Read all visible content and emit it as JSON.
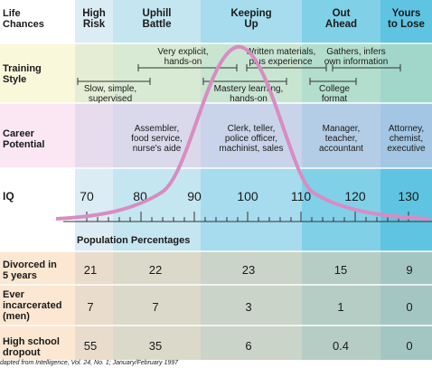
{
  "columns": [
    {
      "line1": "High",
      "line2": "Risk"
    },
    {
      "line1": "Uphill",
      "line2": "Battle"
    },
    {
      "line1": "Keeping",
      "line2": "Up"
    },
    {
      "line1": "Out",
      "line2": "Ahead"
    },
    {
      "line1": "Yours",
      "line2": "to Lose"
    }
  ],
  "row_labels": {
    "life": {
      "line1": "Life",
      "line2": "Chances"
    },
    "training": {
      "line1": "Training",
      "line2": "Style"
    },
    "career": {
      "line1": "Career",
      "line2": "Potential"
    },
    "iq": "IQ",
    "divorced": {
      "line1": "Divorced in",
      "line2": "5 years"
    },
    "incarcerated": {
      "line1": "Ever",
      "line2": "incarcerated",
      "line3": "(men)"
    },
    "dropout": {
      "line1": "High school",
      "line2": "dropout"
    }
  },
  "training_styles": [
    {
      "line1": "Slow, simple,",
      "line2": "supervised"
    },
    {
      "line1": "Very explicit,",
      "line2": "hands-on"
    },
    {
      "line1": "Mastery learning,",
      "line2": "hands-on"
    },
    {
      "line1": "Written materials,",
      "line2": "plus experience"
    },
    {
      "line1": "College",
      "line2": "format"
    },
    {
      "line1": "Gathers, infers",
      "line2": "own information"
    }
  ],
  "careers": [
    {
      "line1": "Assembler,",
      "line2": "food service,",
      "line3": "nurse's aide"
    },
    {
      "line1": "Clerk, teller,",
      "line2": "police officer,",
      "line3": "machinist, sales"
    },
    {
      "line1": "Manager,",
      "line2": "teacher,",
      "line3": "accountant"
    },
    {
      "line1": "Attorney,",
      "line2": "chemist,",
      "line3": "executive"
    }
  ],
  "iq_ticks": [
    "70",
    "80",
    "90",
    "100",
    "110",
    "120",
    "130"
  ],
  "population_label": "Population Percentages",
  "stats": {
    "divorced": [
      "21",
      "22",
      "23",
      "15",
      "9"
    ],
    "incarcerated": [
      "7",
      "7",
      "3",
      "1",
      "0"
    ],
    "dropout": [
      "55",
      "35",
      "6",
      "0.4",
      "0"
    ]
  },
  "footnote": "dapted from Intelligence, Vol. 24, No. 1; January/February 1997",
  "colors": {
    "curve": "#d98cc2",
    "col1": "#dcecf5",
    "col2": "#bfe3ee",
    "col3": "#99d9ea",
    "col4": "#74cde6",
    "col5": "#55c1df",
    "row_life": "#ffffff",
    "row_training": "#eef4cc",
    "row_career": "#f3dced",
    "row_stats": "#f8dcc0"
  }
}
